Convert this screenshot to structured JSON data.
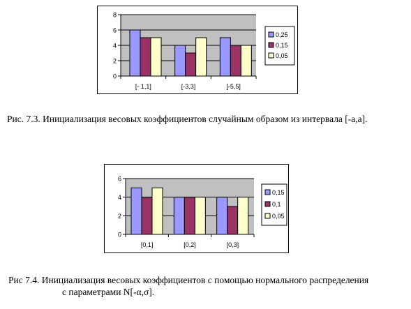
{
  "charts": [
    {
      "type": "bar",
      "categories": [
        "[- 1,1]",
        "[-3,3]",
        "[-5,5]"
      ],
      "series": [
        {
          "name": "0,25",
          "values": [
            6,
            4,
            5
          ],
          "color": "#9999ff"
        },
        {
          "name": "0,15",
          "values": [
            5,
            3,
            4
          ],
          "color": "#993366"
        },
        {
          "name": "0,05",
          "values": [
            5,
            5,
            4
          ],
          "color": "#ffffcc"
        }
      ],
      "yticks": [
        "0",
        "2",
        "4",
        "6",
        "8"
      ],
      "ylim": [
        0,
        8
      ],
      "plot_bg": "#c0c0c0",
      "grid": true,
      "legend_position": "right"
    },
    {
      "type": "bar",
      "categories": [
        "[0,1]",
        "[0,2]",
        "[0,3]"
      ],
      "series": [
        {
          "name": "0,15",
          "values": [
            5,
            4,
            4
          ],
          "color": "#9999ff"
        },
        {
          "name": "0,1",
          "values": [
            4,
            4,
            3
          ],
          "color": "#993366"
        },
        {
          "name": "0,05",
          "values": [
            5,
            4,
            4
          ],
          "color": "#ffffcc"
        }
      ],
      "yticks": [
        "0",
        "2",
        "4",
        "6"
      ],
      "ylim": [
        0,
        6
      ],
      "plot_bg": "#c0c0c0",
      "grid": true,
      "legend_position": "right"
    }
  ],
  "captions": {
    "fig73": "Рис. 7.3. Инициализация весовых коэффициентов случайным образом из интервала [-a,a].",
    "fig74_line1": "Рис 7.4. Инициализация весовых коэффициентов с помощью нормального распределения",
    "fig74_line2": "с параметрами N[-α,σ]."
  }
}
